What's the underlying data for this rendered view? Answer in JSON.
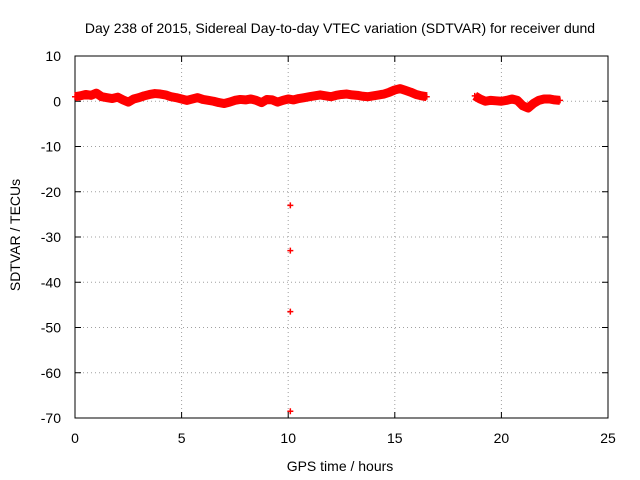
{
  "chart_data": {
    "type": "scatter",
    "title": "Day 238 of 2015, Sidereal Day-to-day VTEC variation (SDTVAR) for receiver dund",
    "xlabel": "GPS time / hours",
    "ylabel": "SDTVAR / TECUs",
    "xlim": [
      0,
      25
    ],
    "ylim": [
      -70,
      10
    ],
    "xticks": [
      "0",
      "5",
      "10",
      "15",
      "20",
      "25"
    ],
    "yticks": [
      "10",
      "0",
      "-10",
      "-20",
      "-30",
      "-40",
      "-50",
      "-60",
      "-70"
    ],
    "grid": true,
    "marker": "+",
    "color": "#ff0000",
    "series": [
      {
        "name": "SDTVAR",
        "x": [
          0.0,
          0.25,
          0.5,
          0.75,
          1.0,
          1.25,
          1.5,
          1.75,
          2.0,
          2.25,
          2.5,
          2.75,
          3.0,
          3.25,
          3.5,
          3.75,
          4.0,
          4.25,
          4.5,
          4.75,
          5.0,
          5.25,
          5.5,
          5.75,
          6.0,
          6.25,
          6.5,
          6.75,
          7.0,
          7.25,
          7.5,
          7.75,
          8.0,
          8.25,
          8.5,
          8.75,
          9.0,
          9.25,
          9.5,
          9.75,
          10.0,
          10.25,
          10.5,
          10.75,
          11.0,
          11.25,
          11.5,
          11.75,
          12.0,
          12.25,
          12.5,
          12.75,
          13.0,
          13.25,
          13.5,
          13.75,
          14.0,
          14.25,
          14.5,
          14.75,
          15.0,
          15.25,
          15.5,
          15.75,
          16.0,
          16.25,
          16.5,
          18.75,
          19.0,
          19.25,
          19.5,
          19.75,
          20.0,
          20.25,
          20.5,
          20.75,
          21.0,
          21.25,
          21.5,
          21.75,
          22.0,
          22.25,
          22.5,
          22.75,
          10.1,
          10.1,
          10.1,
          10.1
        ],
        "y": [
          1.0,
          1.2,
          1.5,
          1.3,
          1.8,
          1.0,
          0.8,
          0.6,
          0.9,
          0.3,
          -0.2,
          0.5,
          0.8,
          1.2,
          1.5,
          1.7,
          1.6,
          1.4,
          1.0,
          0.8,
          0.5,
          0.2,
          0.5,
          0.8,
          0.4,
          0.2,
          0.0,
          -0.3,
          -0.5,
          -0.2,
          0.2,
          0.4,
          0.3,
          0.5,
          0.2,
          -0.3,
          0.4,
          0.3,
          -0.2,
          0.2,
          0.5,
          0.3,
          0.6,
          0.8,
          1.0,
          1.2,
          1.4,
          1.2,
          1.0,
          1.3,
          1.5,
          1.6,
          1.4,
          1.3,
          1.1,
          1.0,
          1.2,
          1.4,
          1.6,
          2.0,
          2.5,
          2.8,
          2.4,
          2.0,
          1.5,
          1.2,
          1.0,
          1.2,
          0.5,
          0.0,
          0.2,
          0.1,
          0.0,
          0.2,
          0.5,
          0.2,
          -1.0,
          -1.5,
          -0.5,
          0.2,
          0.5,
          0.5,
          0.3,
          0.2,
          -23.0,
          -33.0,
          -46.5,
          -68.5
        ]
      }
    ]
  }
}
